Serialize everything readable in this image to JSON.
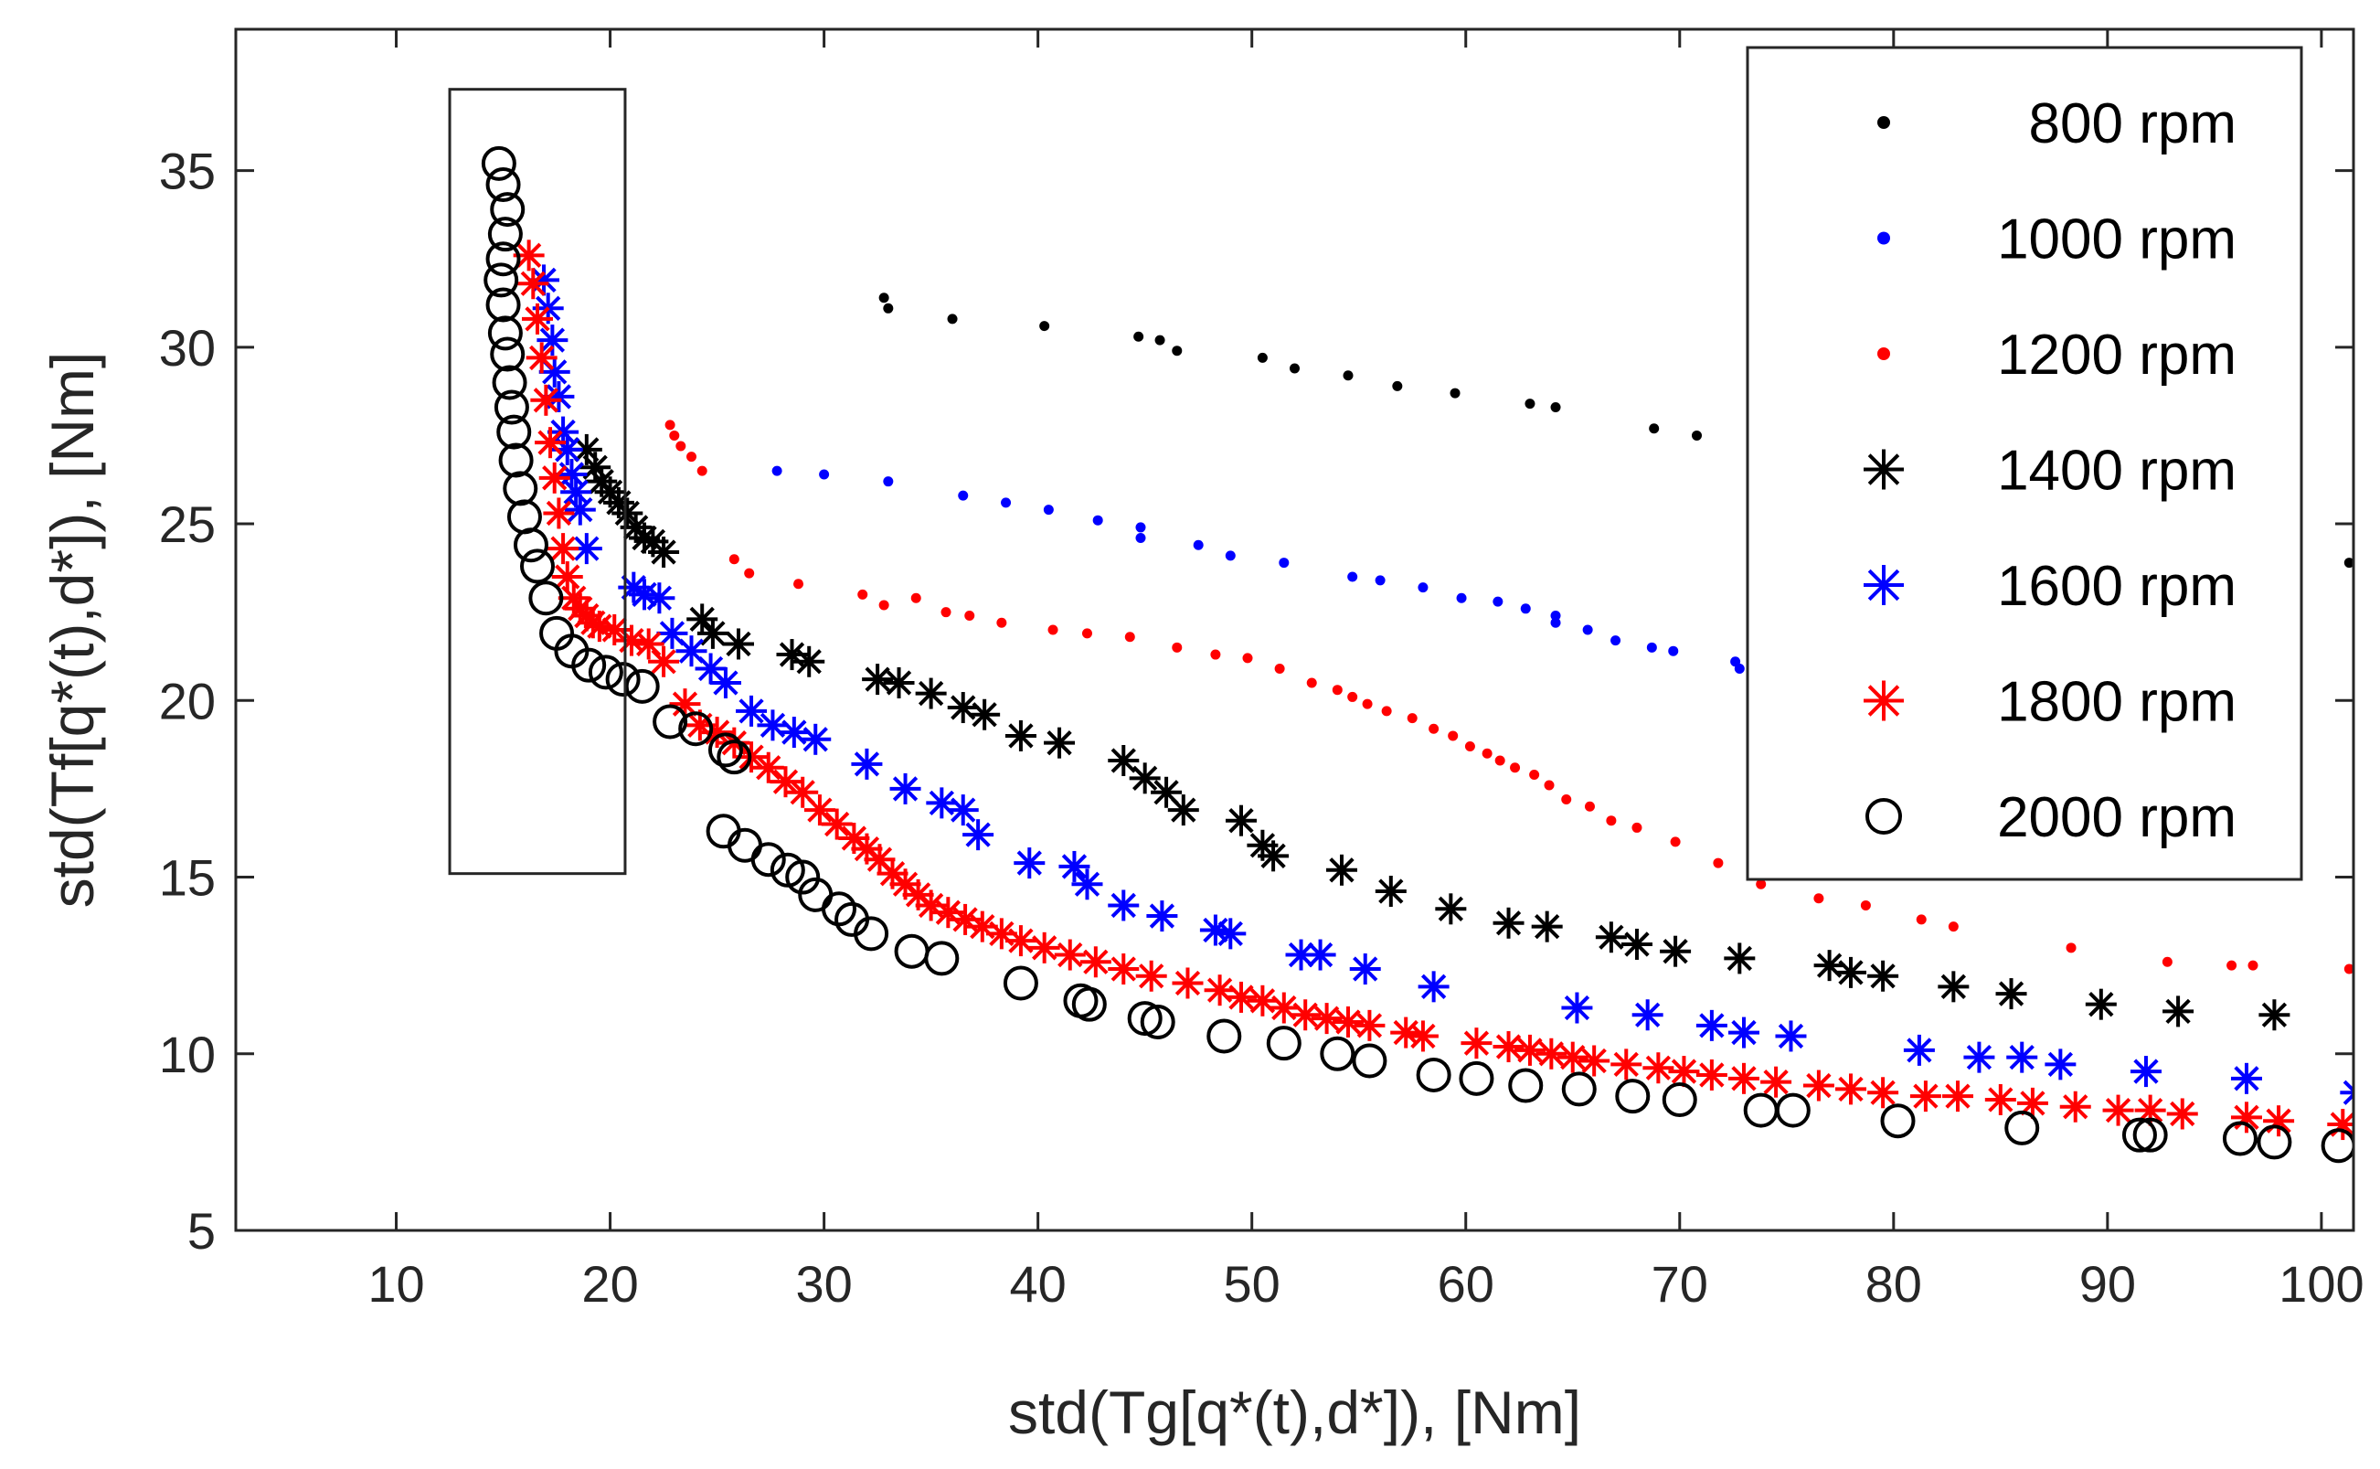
{
  "chart_data": {
    "type": "scatter",
    "title": "",
    "xlabel": "std(Tg[q*(t),d*]), [Nm]",
    "ylabel": "std(Tf[q*(t),d*]), [Nm]",
    "xlim": [
      2.5,
      101.5
    ],
    "ylim": [
      5,
      39
    ],
    "xticks": [
      10,
      20,
      30,
      40,
      50,
      60,
      70,
      80,
      90,
      100
    ],
    "yticks": [
      5,
      10,
      15,
      20,
      25,
      30,
      35
    ],
    "grid": false,
    "legend_position": "top-right",
    "highlight_box": {
      "x": [
        12.5,
        20.7
      ],
      "y": [
        15.1,
        37.3
      ]
    },
    "series": [
      {
        "name": "800 rpm",
        "marker": "dot",
        "color": "#000000",
        "x": [
          32.8,
          33.0,
          36.0,
          40.3,
          44.7,
          45.7,
          46.5,
          50.5,
          52.0,
          54.5,
          56.8,
          59.5,
          63.0,
          64.2,
          68.8,
          70.8,
          101.3
        ],
        "y": [
          31.4,
          31.1,
          30.8,
          30.6,
          30.3,
          30.2,
          29.9,
          29.7,
          29.4,
          29.2,
          28.9,
          28.7,
          28.4,
          28.3,
          27.7,
          27.5,
          23.9
        ]
      },
      {
        "name": "1000 rpm",
        "marker": "dot",
        "color": "#0000ff",
        "x": [
          27.8,
          30.0,
          33.0,
          36.5,
          38.5,
          40.5,
          42.8,
          44.8,
          44.8,
          47.5,
          49.0,
          51.5,
          54.7,
          56.0,
          58.0,
          59.8,
          61.5,
          62.8,
          64.2,
          64.2,
          65.7,
          67.0,
          68.7,
          69.7,
          72.6,
          72.8
        ],
        "y": [
          26.5,
          26.4,
          26.2,
          25.8,
          25.6,
          25.4,
          25.1,
          24.9,
          24.6,
          24.4,
          24.1,
          23.9,
          23.5,
          23.4,
          23.2,
          22.9,
          22.8,
          22.6,
          22.4,
          22.2,
          22.0,
          21.7,
          21.5,
          21.4,
          21.1,
          20.9
        ],
        "x_note": "upper band of small blue dots"
      },
      {
        "name": "1200 rpm",
        "marker": "dot",
        "color": "#ff0000",
        "x": [
          22.8,
          23.0,
          23.3,
          23.8,
          24.3,
          25.8,
          26.5,
          28.8,
          31.8,
          32.8,
          34.3,
          35.7,
          36.8,
          38.3,
          40.7,
          42.3,
          44.3,
          46.5,
          48.3,
          49.8,
          51.3,
          52.8,
          54.0,
          54.7,
          55.4,
          56.3,
          57.5,
          58.5,
          59.4,
          60.2,
          61.0,
          61.6,
          62.3,
          63.2,
          63.9,
          64.7,
          65.8,
          66.8,
          68.0,
          69.8,
          71.8,
          73.8,
          76.5,
          78.7,
          81.3,
          82.8,
          88.3,
          92.8,
          95.8,
          96.8,
          101.3
        ],
        "y": [
          27.8,
          27.5,
          27.2,
          26.9,
          26.5,
          24.0,
          23.6,
          23.3,
          23.0,
          22.7,
          22.9,
          22.5,
          22.4,
          22.2,
          22.0,
          21.9,
          21.8,
          21.5,
          21.3,
          21.2,
          20.9,
          20.5,
          20.3,
          20.1,
          19.9,
          19.7,
          19.5,
          19.2,
          19.0,
          18.7,
          18.5,
          18.3,
          18.1,
          17.9,
          17.6,
          17.2,
          17.0,
          16.6,
          16.4,
          16.0,
          15.4,
          14.8,
          14.4,
          14.2,
          13.8,
          13.6,
          13.0,
          12.6,
          12.5,
          12.5,
          12.4
        ]
      },
      {
        "name": "1400 rpm",
        "marker": "asterisk",
        "color": "#000000",
        "x": [
          18.9,
          19.3,
          19.6,
          20.0,
          20.4,
          20.8,
          21.2,
          21.6,
          22.0,
          22.5,
          24.3,
          24.8,
          26.0,
          28.5,
          29.3,
          32.5,
          33.5,
          35.0,
          36.5,
          37.5,
          39.2,
          41.0,
          44.0,
          45.0,
          46.0,
          46.8,
          49.5,
          50.5,
          51.0,
          54.2,
          56.5,
          59.3,
          62.0,
          63.8,
          66.8,
          68.0,
          69.8,
          72.8,
          77.0,
          78.0,
          79.5,
          82.8,
          85.5,
          89.7,
          93.3,
          97.8
        ],
        "y": [
          27.1,
          26.6,
          26.2,
          25.9,
          25.6,
          25.3,
          24.9,
          24.6,
          24.5,
          24.2,
          22.3,
          21.9,
          21.6,
          21.3,
          21.1,
          20.6,
          20.5,
          20.2,
          19.8,
          19.6,
          19.0,
          18.8,
          18.3,
          17.8,
          17.4,
          16.9,
          16.6,
          15.9,
          15.6,
          15.2,
          14.6,
          14.1,
          13.7,
          13.6,
          13.3,
          13.1,
          12.9,
          12.7,
          12.5,
          12.3,
          12.2,
          11.9,
          11.7,
          11.4,
          11.2,
          11.1
        ]
      },
      {
        "name": "1600 rpm",
        "marker": "asterisk",
        "color": "#0000ff",
        "x": [
          16.9,
          17.1,
          17.3,
          17.4,
          17.6,
          17.8,
          18.0,
          18.2,
          18.4,
          18.6,
          18.9,
          21.1,
          21.6,
          22.3,
          22.9,
          23.8,
          24.7,
          25.4,
          26.6,
          27.6,
          28.6,
          29.6,
          32.0,
          33.8,
          35.5,
          36.5,
          37.2,
          39.6,
          41.7,
          42.3,
          44.0,
          45.8,
          48.3,
          49.0,
          52.3,
          53.2,
          55.3,
          58.5,
          65.2,
          68.5,
          71.5,
          73.0,
          75.2,
          81.2,
          84.0,
          86.0,
          87.8,
          91.8,
          96.5,
          101.6
        ],
        "y": [
          31.9,
          31.1,
          30.2,
          29.3,
          28.6,
          27.6,
          27.1,
          26.4,
          25.9,
          25.4,
          24.3,
          23.2,
          23.0,
          22.9,
          21.9,
          21.4,
          20.9,
          20.5,
          19.7,
          19.3,
          19.1,
          18.9,
          18.2,
          17.5,
          17.1,
          16.9,
          16.2,
          15.4,
          15.3,
          14.8,
          14.2,
          13.9,
          13.5,
          13.4,
          12.8,
          12.8,
          12.4,
          11.9,
          11.3,
          11.1,
          10.8,
          10.6,
          10.5,
          10.1,
          9.9,
          9.9,
          9.7,
          9.5,
          9.3,
          8.9
        ]
      },
      {
        "name": "1800 rpm",
        "marker": "asterisk",
        "color": "#ff0000",
        "x": [
          16.2,
          16.4,
          16.6,
          16.8,
          17.0,
          17.2,
          17.4,
          17.6,
          17.8,
          18.0,
          18.3,
          18.6,
          18.9,
          19.2,
          19.5,
          20.2,
          21.0,
          21.8,
          22.5,
          23.5,
          24.2,
          25.0,
          25.8,
          26.6,
          27.4,
          28.2,
          29.0,
          29.8,
          30.6,
          31.4,
          32.0,
          32.6,
          33.2,
          33.8,
          34.4,
          35.0,
          35.8,
          36.6,
          37.4,
          38.3,
          39.2,
          40.3,
          41.5,
          42.7,
          44.0,
          45.3,
          47.0,
          48.5,
          49.5,
          50.5,
          51.5,
          52.5,
          53.5,
          54.5,
          55.5,
          57.2,
          58.0,
          60.5,
          62.0,
          63.0,
          64.0,
          65.0,
          66.0,
          67.5,
          69.0,
          70.2,
          71.5,
          73.0,
          74.5,
          76.5,
          78.0,
          79.5,
          81.5,
          83.0,
          85.0,
          86.5,
          88.5,
          90.5,
          92.0,
          93.5,
          96.5,
          98.0,
          101.0
        ],
        "y": [
          32.6,
          31.8,
          30.8,
          29.7,
          28.5,
          27.3,
          26.3,
          25.3,
          24.3,
          23.5,
          22.9,
          22.6,
          22.4,
          22.2,
          22.1,
          22.0,
          21.7,
          21.6,
          21.1,
          19.9,
          19.3,
          19.1,
          18.8,
          18.4,
          18.1,
          17.7,
          17.4,
          16.9,
          16.5,
          16.1,
          15.8,
          15.5,
          15.1,
          14.8,
          14.5,
          14.2,
          14.0,
          13.8,
          13.6,
          13.4,
          13.2,
          13.0,
          12.8,
          12.6,
          12.4,
          12.2,
          12.0,
          11.8,
          11.6,
          11.5,
          11.3,
          11.1,
          11.0,
          10.9,
          10.8,
          10.6,
          10.5,
          10.3,
          10.2,
          10.1,
          10.0,
          9.9,
          9.8,
          9.7,
          9.6,
          9.5,
          9.4,
          9.3,
          9.2,
          9.1,
          9.0,
          8.9,
          8.8,
          8.8,
          8.7,
          8.6,
          8.5,
          8.4,
          8.4,
          8.3,
          8.2,
          8.1,
          8.0
        ]
      },
      {
        "name": "2000 rpm",
        "marker": "circle",
        "color": "#000000",
        "x": [
          14.8,
          15.0,
          15.2,
          15.1,
          15.0,
          14.9,
          15.0,
          15.1,
          15.2,
          15.3,
          15.4,
          15.5,
          15.6,
          15.8,
          16.0,
          16.3,
          16.6,
          17.0,
          17.5,
          18.2,
          19.0,
          19.8,
          20.6,
          21.5,
          22.8,
          24.0,
          25.4,
          25.8,
          25.3,
          26.3,
          27.4,
          28.3,
          29.0,
          29.6,
          30.7,
          31.3,
          32.2,
          34.1,
          35.5,
          39.2,
          42.0,
          42.4,
          45.0,
          45.6,
          48.7,
          51.5,
          54.0,
          55.5,
          58.5,
          60.5,
          62.8,
          65.3,
          67.8,
          70.0,
          73.8,
          75.3,
          80.2,
          86.0,
          91.5,
          92.0,
          96.2,
          97.8,
          100.8
        ],
        "y": [
          35.2,
          34.6,
          33.9,
          33.2,
          32.5,
          31.9,
          31.2,
          30.4,
          29.8,
          29.0,
          28.3,
          27.6,
          26.8,
          26.0,
          25.2,
          24.4,
          23.8,
          22.9,
          21.9,
          21.4,
          21.0,
          20.8,
          20.6,
          20.4,
          19.4,
          19.2,
          18.6,
          18.4,
          16.3,
          15.9,
          15.5,
          15.2,
          15.0,
          14.5,
          14.1,
          13.8,
          13.4,
          12.9,
          12.7,
          12.0,
          11.5,
          11.4,
          11.0,
          10.9,
          10.5,
          10.3,
          10.0,
          9.8,
          9.4,
          9.3,
          9.1,
          9.0,
          8.8,
          8.7,
          8.4,
          8.4,
          8.1,
          7.9,
          7.7,
          7.7,
          7.6,
          7.5,
          7.4
        ]
      }
    ]
  }
}
